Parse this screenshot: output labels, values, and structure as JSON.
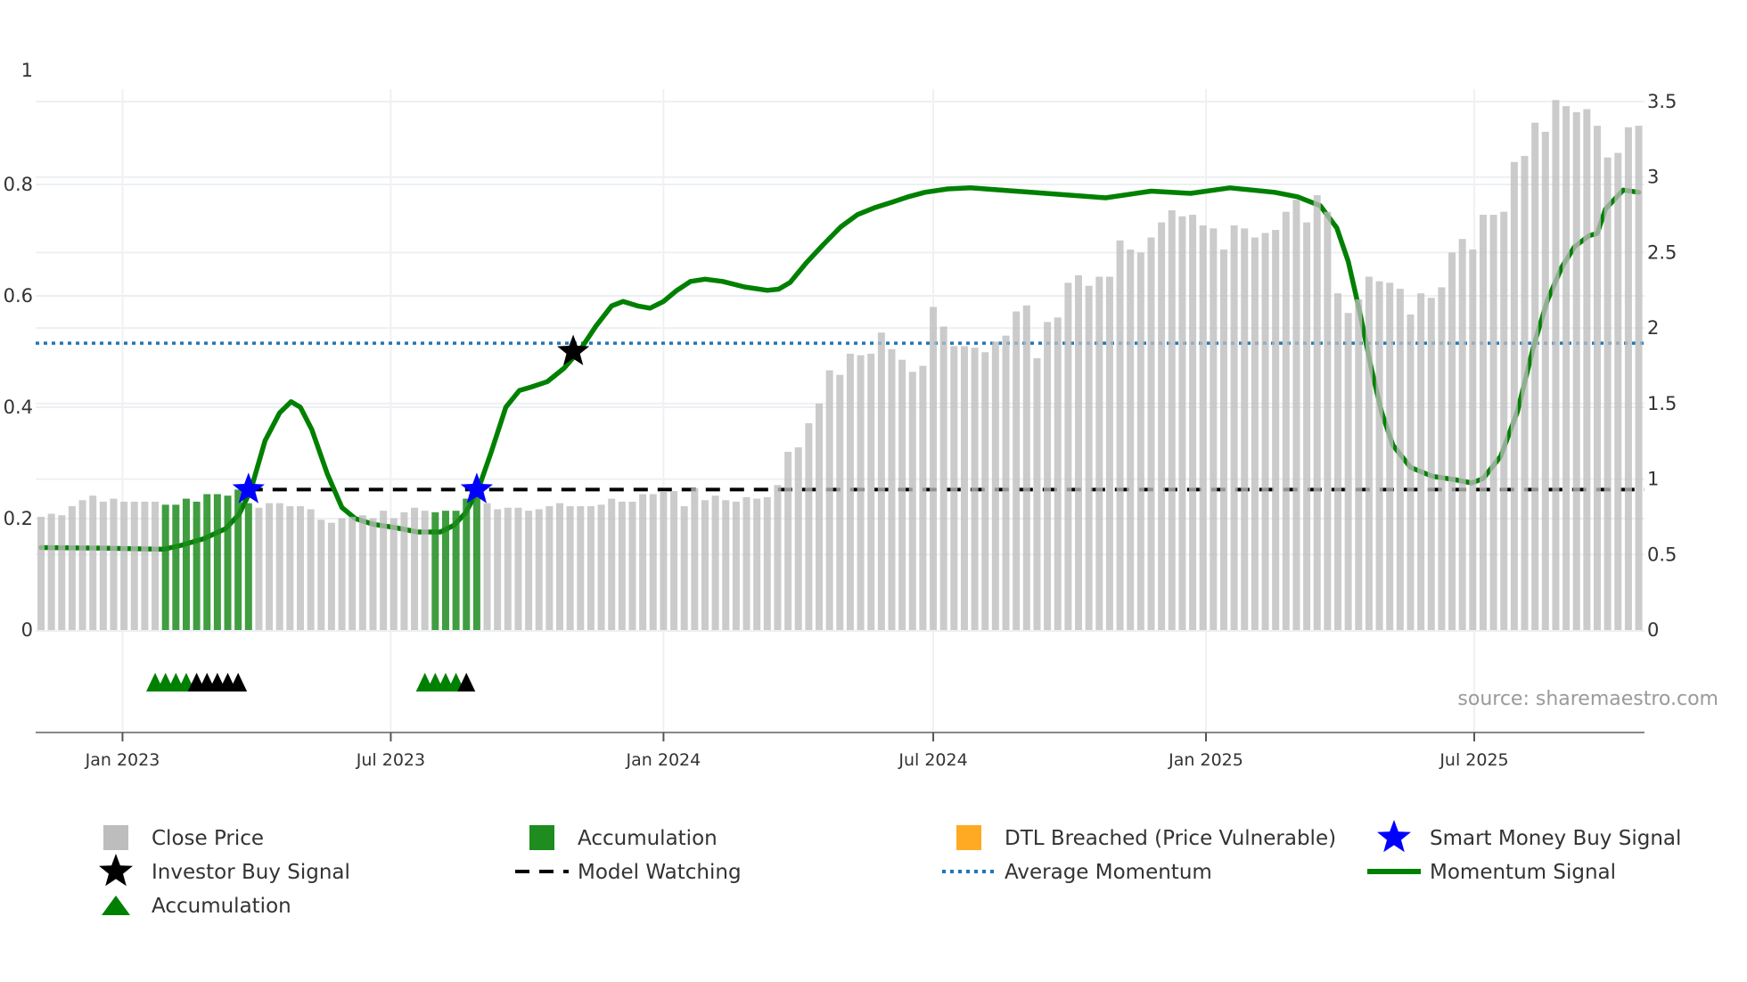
{
  "chart_data": {
    "type": "bar",
    "title": "",
    "start_date": "2022-11-07",
    "frequency": "weekly",
    "x_unit": "week_index",
    "close_price": [
      0.75,
      0.77,
      0.76,
      0.82,
      0.86,
      0.89,
      0.85,
      0.87,
      0.85,
      0.85,
      0.85,
      0.85,
      0.83,
      0.83,
      0.87,
      0.85,
      0.9,
      0.9,
      0.89,
      0.93,
      0.84,
      0.81,
      0.84,
      0.84,
      0.82,
      0.82,
      0.8,
      0.73,
      0.71,
      0.74,
      0.75,
      0.76,
      0.74,
      0.79,
      0.74,
      0.78,
      0.81,
      0.79,
      0.78,
      0.79,
      0.79,
      0.87,
      0.88,
      0.84,
      0.8,
      0.81,
      0.81,
      0.79,
      0.8,
      0.82,
      0.84,
      0.82,
      0.82,
      0.82,
      0.83,
      0.87,
      0.85,
      0.85,
      0.9,
      0.9,
      0.92,
      0.92,
      0.82,
      0.94,
      0.86,
      0.89,
      0.86,
      0.85,
      0.88,
      0.87,
      0.88,
      0.96,
      1.18,
      1.21,
      1.37,
      1.5,
      1.72,
      1.69,
      1.83,
      1.82,
      1.83,
      1.97,
      1.86,
      1.79,
      1.71,
      1.75,
      2.14,
      2.01,
      1.88,
      1.88,
      1.87,
      1.84,
      1.91,
      1.95,
      2.11,
      2.15,
      1.8,
      2.04,
      2.07,
      2.3,
      2.35,
      2.28,
      2.34,
      2.34,
      2.58,
      2.52,
      2.5,
      2.6,
      2.7,
      2.78,
      2.74,
      2.75,
      2.68,
      2.66,
      2.52,
      2.68,
      2.66,
      2.6,
      2.63,
      2.65,
      2.77,
      2.85,
      2.7,
      2.88,
      2.77,
      2.23,
      2.1,
      2.19,
      2.34,
      2.31,
      2.3,
      2.26,
      2.09,
      2.23,
      2.2,
      2.27,
      2.5,
      2.59,
      2.52,
      2.75,
      2.75,
      2.77,
      3.1,
      3.14,
      3.36,
      3.3,
      3.51,
      3.47,
      3.43,
      3.45,
      3.34,
      3.13,
      3.16,
      3.33,
      3.34
    ],
    "accumulation_ranges": [
      [
        12,
        20
      ],
      [
        38,
        42
      ]
    ],
    "momentum": {
      "x": [
        0,
        6,
        11.8,
        13.5,
        15.7,
        17.8,
        19.1,
        20.2,
        21.6,
        23.0,
        24.1,
        25.0,
        26.1,
        27.6,
        29.0,
        30.3,
        32.0,
        34.1,
        36.3,
        38.5,
        39.8,
        40.9,
        42.1,
        43.4,
        44.8,
        46.1,
        47.2,
        48.8,
        50.4,
        52.0,
        53.5,
        55.0,
        56.1,
        57.5,
        58.7,
        60.0,
        61.3,
        62.6,
        64.0,
        65.7,
        67.8,
        70.0,
        71.1,
        72.2,
        73.8,
        75.4,
        77.1,
        78.7,
        80.3,
        82.0,
        83.6,
        85.2,
        87.4,
        89.6,
        93.9,
        98.3,
        102.6,
        107.0,
        110.8,
        114.6,
        118.9,
        121.1,
        123.3,
        124.9,
        126.0,
        127.1,
        128.2,
        129.2,
        130.3,
        132.0,
        134.1,
        136.3,
        137.9,
        139.0,
        140.7,
        142.3,
        143.9,
        145.2,
        146.6,
        147.8,
        149.2,
        150.0,
        150.8,
        152.5,
        154
      ],
      "y": [
        0.148,
        0.147,
        0.145,
        0.152,
        0.164,
        0.182,
        0.208,
        0.25,
        0.34,
        0.39,
        0.41,
        0.4,
        0.36,
        0.28,
        0.22,
        0.2,
        0.19,
        0.184,
        0.176,
        0.176,
        0.188,
        0.21,
        0.25,
        0.32,
        0.4,
        0.43,
        0.436,
        0.446,
        0.47,
        0.504,
        0.546,
        0.582,
        0.59,
        0.582,
        0.578,
        0.59,
        0.61,
        0.626,
        0.63,
        0.626,
        0.616,
        0.61,
        0.612,
        0.624,
        0.66,
        0.692,
        0.724,
        0.746,
        0.758,
        0.768,
        0.778,
        0.786,
        0.792,
        0.794,
        0.788,
        0.782,
        0.776,
        0.788,
        0.784,
        0.794,
        0.786,
        0.778,
        0.762,
        0.722,
        0.662,
        0.572,
        0.472,
        0.392,
        0.332,
        0.292,
        0.276,
        0.27,
        0.264,
        0.272,
        0.312,
        0.392,
        0.512,
        0.592,
        0.652,
        0.688,
        0.708,
        0.712,
        0.756,
        0.79,
        0.786
      ]
    },
    "average_momentum": 0.515,
    "model_watching": {
      "price": 0.93,
      "from_index": 20
    },
    "smart_money_buy_signals": [
      {
        "index": 20,
        "price": 0.93
      },
      {
        "index": 42,
        "price": 0.93
      }
    ],
    "investor_buy_signals": [
      {
        "index": 51.3,
        "momentum": 0.5
      }
    ],
    "accumulation_triangles_green": [
      11,
      12,
      13,
      14,
      37,
      38,
      39,
      40
    ],
    "accumulation_triangles_black": [
      15,
      16,
      17,
      18,
      19,
      41
    ],
    "y_left": {
      "range": [
        0,
        1
      ],
      "ticks": [
        "0",
        "0.2",
        "0.4",
        "0.6",
        "0.8",
        "1"
      ],
      "values": [
        0,
        0.2,
        0.4,
        0.6,
        0.8,
        1
      ]
    },
    "y_right": {
      "range": [
        0,
        3.5
      ],
      "ticks": [
        "0",
        "0.5",
        "1",
        "1.5",
        "2",
        "2.5",
        "3",
        "3.5"
      ],
      "values": [
        0,
        0.5,
        1,
        1.5,
        2,
        2.5,
        3,
        3.5
      ]
    },
    "x_ticks": [
      {
        "label": "Jan 2023",
        "date": "2023-01-01"
      },
      {
        "label": "Jul 2023",
        "date": "2023-07-01"
      },
      {
        "label": "Jan 2024",
        "date": "2024-01-01"
      },
      {
        "label": "Jul 2024",
        "date": "2024-07-01"
      },
      {
        "label": "Jan 2025",
        "date": "2025-01-01"
      },
      {
        "label": "Jul 2025",
        "date": "2025-07-01"
      }
    ],
    "legend": [
      {
        "label": "Close Price",
        "symbol": "square",
        "color": "#bdbdbd"
      },
      {
        "label": "Accumulation",
        "symbol": "square",
        "color": "#1e8c1e"
      },
      {
        "label": "DTL Breached (Price Vulnerable)",
        "symbol": "square",
        "color": "#ffaa22"
      },
      {
        "label": "Smart Money Buy Signal",
        "symbol": "star",
        "color": "#0000ff"
      },
      {
        "label": "Investor Buy Signal",
        "symbol": "star",
        "color": "#000000"
      },
      {
        "label": "Model Watching",
        "symbol": "dash",
        "color": "#000000"
      },
      {
        "label": "Average Momentum",
        "symbol": "dot",
        "color": "#1f77b4"
      },
      {
        "label": "Momentum Signal",
        "symbol": "line",
        "color": "#008000"
      },
      {
        "label": "Accumulation",
        "symbol": "triangle",
        "color": "#008000"
      }
    ],
    "legend_placement": "bottom",
    "source": "source: sharemaestro.com",
    "colors": {
      "bar": "#bdbdbd",
      "accum_bar": "#1e8c1e",
      "momentum": "#008000",
      "avg": "#1f77b4",
      "smart_star": "#0000ff"
    }
  }
}
